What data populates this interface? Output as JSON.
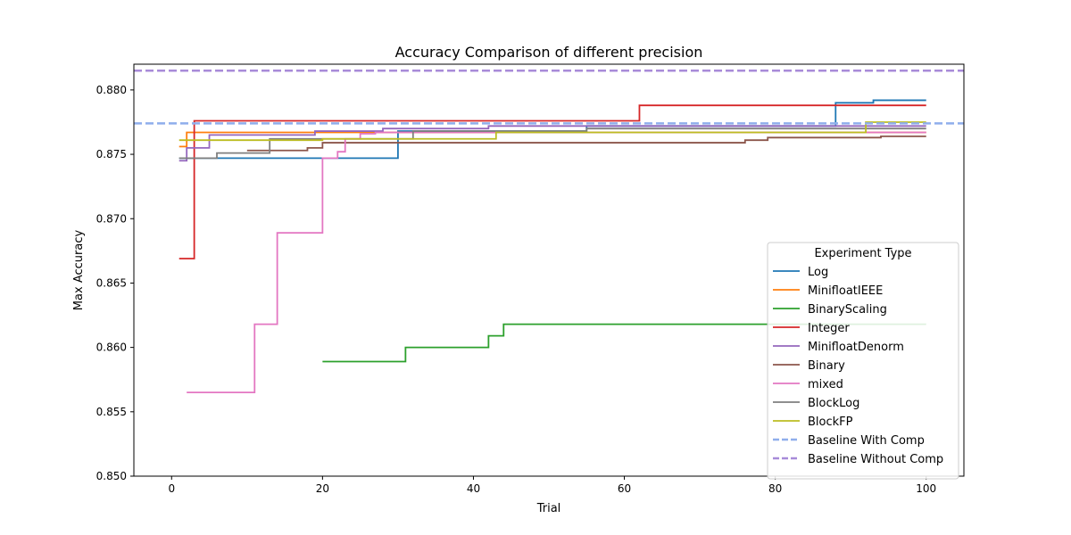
{
  "chart_data": {
    "type": "line",
    "title": "Accuracy Comparison of different precision",
    "xlabel": "Trial",
    "ylabel": "Max Accuracy",
    "xlim": [
      -5,
      105
    ],
    "ylim": [
      0.85,
      0.882
    ],
    "xticks": [
      0,
      20,
      40,
      60,
      80,
      100
    ],
    "yticks": [
      0.85,
      0.855,
      0.86,
      0.865,
      0.87,
      0.875,
      0.88
    ],
    "xtick_labels": [
      "0",
      "20",
      "40",
      "60",
      "80",
      "100"
    ],
    "ytick_labels": [
      "0.850",
      "0.855",
      "0.860",
      "0.865",
      "0.870",
      "0.875",
      "0.880"
    ],
    "grid": false,
    "legend": {
      "title": "Experiment Type",
      "placement": "lower-right"
    },
    "series": [
      {
        "name": "Log",
        "color": "#1f77b4",
        "style": "step",
        "x": [
          1,
          29,
          30,
          55,
          88,
          93,
          100
        ],
        "y": [
          0.8747,
          0.8747,
          0.8768,
          0.8772,
          0.879,
          0.8792,
          0.8792
        ]
      },
      {
        "name": "MinifloatIEEE",
        "color": "#ff7f0e",
        "style": "step",
        "x": [
          1,
          2,
          100
        ],
        "y": [
          0.8756,
          0.8767,
          0.8767
        ]
      },
      {
        "name": "BinaryScaling",
        "color": "#2ca02c",
        "style": "step",
        "x": [
          20,
          31,
          42,
          44,
          100
        ],
        "y": [
          0.8589,
          0.86,
          0.8609,
          0.8618,
          0.8618
        ]
      },
      {
        "name": "Integer",
        "color": "#d62728",
        "style": "step",
        "x": [
          1,
          3,
          62,
          100
        ],
        "y": [
          0.8669,
          0.8776,
          0.8788,
          0.8788
        ]
      },
      {
        "name": "MinifloatDenorm",
        "color": "#9467bd",
        "style": "step",
        "x": [
          1,
          2,
          5,
          19,
          28,
          42,
          100
        ],
        "y": [
          0.8745,
          0.8755,
          0.8765,
          0.8768,
          0.877,
          0.8772,
          0.8772
        ]
      },
      {
        "name": "Binary",
        "color": "#8c564b",
        "style": "step",
        "x": [
          10,
          18,
          20,
          76,
          79,
          94,
          100
        ],
        "y": [
          0.8753,
          0.8755,
          0.8759,
          0.8761,
          0.8763,
          0.8764,
          0.8764
        ]
      },
      {
        "name": "mixed",
        "color": "#e377c2",
        "style": "step",
        "x": [
          2,
          11,
          14,
          20,
          22,
          23,
          25,
          27,
          100
        ],
        "y": [
          0.8565,
          0.8618,
          0.8689,
          0.8747,
          0.8752,
          0.8762,
          0.8766,
          0.8767,
          0.8767
        ]
      },
      {
        "name": "BlockLog",
        "color": "#7f7f7f",
        "style": "step",
        "x": [
          1,
          6,
          13,
          32,
          55,
          100
        ],
        "y": [
          0.8747,
          0.8751,
          0.8762,
          0.8768,
          0.877,
          0.877
        ]
      },
      {
        "name": "BlockFP",
        "color": "#bcbd22",
        "style": "step",
        "x": [
          1,
          5,
          20,
          43,
          92,
          100
        ],
        "y": [
          0.8761,
          0.8761,
          0.8762,
          0.8767,
          0.8775,
          0.8775
        ]
      },
      {
        "name": "Baseline With Comp",
        "color": "#8faeec",
        "style": "hline",
        "value": 0.8774
      },
      {
        "name": "Baseline Without Comp",
        "color": "#a88bd9",
        "style": "hline",
        "value": 0.8815
      }
    ]
  }
}
